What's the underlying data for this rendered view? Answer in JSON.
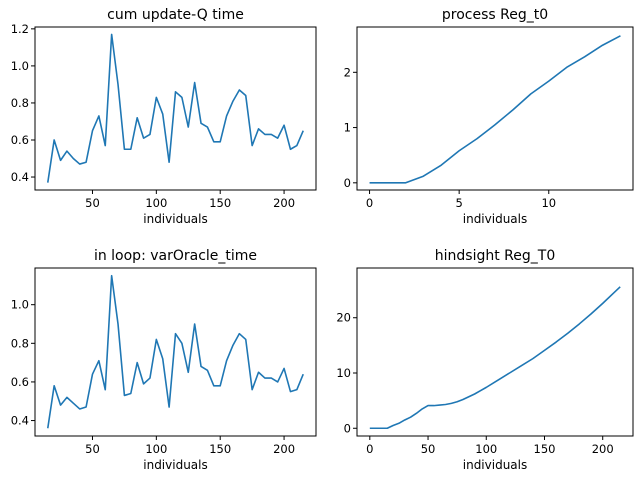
{
  "chart_data": [
    {
      "type": "line",
      "title": "cum update-Q time",
      "xlabel": "individuals",
      "ylabel": "",
      "xlim": [
        5,
        225
      ],
      "ylim": [
        0.33,
        1.21
      ],
      "xticks": [
        50,
        100,
        150,
        200
      ],
      "yticks": [
        0.4,
        0.6,
        0.8,
        1.0,
        1.2
      ],
      "ytick_labels": [
        "0.4",
        "0.6",
        "0.8",
        "1.0",
        "1.2"
      ],
      "grid": false,
      "series": [
        {
          "color": "#1f77b4",
          "x": [
            15,
            20,
            25,
            30,
            35,
            40,
            45,
            50,
            55,
            60,
            65,
            70,
            75,
            80,
            85,
            90,
            95,
            100,
            105,
            110,
            115,
            120,
            125,
            130,
            135,
            140,
            145,
            150,
            155,
            160,
            165,
            170,
            175,
            180,
            185,
            190,
            195,
            200,
            205,
            210,
            215
          ],
          "y": [
            0.37,
            0.6,
            0.49,
            0.54,
            0.5,
            0.47,
            0.48,
            0.65,
            0.73,
            0.57,
            1.17,
            0.9,
            0.55,
            0.55,
            0.72,
            0.61,
            0.63,
            0.83,
            0.74,
            0.48,
            0.86,
            0.83,
            0.67,
            0.91,
            0.69,
            0.67,
            0.59,
            0.59,
            0.73,
            0.81,
            0.87,
            0.84,
            0.57,
            0.66,
            0.63,
            0.63,
            0.61,
            0.68,
            0.55,
            0.57,
            0.65
          ]
        }
      ]
    },
    {
      "type": "line",
      "title": "process Reg_t0",
      "xlabel": "individuals",
      "ylabel": "",
      "xlim": [
        -0.7,
        14.7
      ],
      "ylim": [
        -0.13,
        2.82
      ],
      "xticks": [
        0,
        5,
        10
      ],
      "yticks": [
        0,
        1,
        2
      ],
      "ytick_labels": [
        "0",
        "1",
        "2"
      ],
      "grid": false,
      "series": [
        {
          "color": "#1f77b4",
          "x": [
            0,
            1,
            2,
            3,
            4,
            5,
            6,
            7,
            8,
            9,
            10,
            11,
            12,
            13,
            14
          ],
          "y": [
            0.0,
            0.0,
            0.0,
            0.12,
            0.32,
            0.58,
            0.8,
            1.05,
            1.32,
            1.61,
            1.84,
            2.09,
            2.28,
            2.49,
            2.66
          ]
        }
      ]
    },
    {
      "type": "line",
      "title": "in loop: varOracle_time",
      "xlabel": "individuals",
      "ylabel": "",
      "xlim": [
        5,
        225
      ],
      "ylim": [
        0.32,
        1.19
      ],
      "xticks": [
        50,
        100,
        150,
        200
      ],
      "yticks": [
        0.4,
        0.6,
        0.8,
        1.0
      ],
      "ytick_labels": [
        "0.4",
        "0.6",
        "0.8",
        "1.0"
      ],
      "grid": false,
      "series": [
        {
          "color": "#1f77b4",
          "x": [
            15,
            20,
            25,
            30,
            35,
            40,
            45,
            50,
            55,
            60,
            65,
            70,
            75,
            80,
            85,
            90,
            95,
            100,
            105,
            110,
            115,
            120,
            125,
            130,
            135,
            140,
            145,
            150,
            155,
            160,
            165,
            170,
            175,
            180,
            185,
            190,
            195,
            200,
            205,
            210,
            215
          ],
          "y": [
            0.36,
            0.58,
            0.48,
            0.52,
            0.49,
            0.46,
            0.47,
            0.64,
            0.71,
            0.56,
            1.15,
            0.9,
            0.53,
            0.54,
            0.7,
            0.59,
            0.62,
            0.82,
            0.72,
            0.47,
            0.85,
            0.8,
            0.65,
            0.9,
            0.68,
            0.66,
            0.58,
            0.58,
            0.71,
            0.79,
            0.85,
            0.82,
            0.56,
            0.65,
            0.62,
            0.62,
            0.6,
            0.67,
            0.55,
            0.56,
            0.64
          ]
        }
      ]
    },
    {
      "type": "line",
      "title": "hindsight Reg_T0",
      "xlabel": "individuals",
      "ylabel": "",
      "xlim": [
        -11,
        226
      ],
      "ylim": [
        -1.4,
        29.0
      ],
      "xticks": [
        0,
        50,
        100,
        150,
        200
      ],
      "yticks": [
        0,
        10,
        20
      ],
      "ytick_labels": [
        "0",
        "10",
        "20"
      ],
      "grid": false,
      "series": [
        {
          "color": "#1f77b4",
          "x": [
            0,
            10,
            15,
            20,
            25,
            30,
            35,
            40,
            45,
            50,
            55,
            60,
            65,
            70,
            75,
            80,
            85,
            90,
            95,
            100,
            110,
            120,
            130,
            140,
            150,
            160,
            170,
            180,
            190,
            200,
            210,
            215
          ],
          "y": [
            0.0,
            0.0,
            0.0,
            0.5,
            0.9,
            1.5,
            2.0,
            2.7,
            3.5,
            4.1,
            4.1,
            4.2,
            4.3,
            4.5,
            4.8,
            5.2,
            5.7,
            6.2,
            6.8,
            7.4,
            8.7,
            10.0,
            11.3,
            12.6,
            14.1,
            15.6,
            17.2,
            18.9,
            20.7,
            22.6,
            24.6,
            25.6
          ]
        }
      ]
    }
  ]
}
